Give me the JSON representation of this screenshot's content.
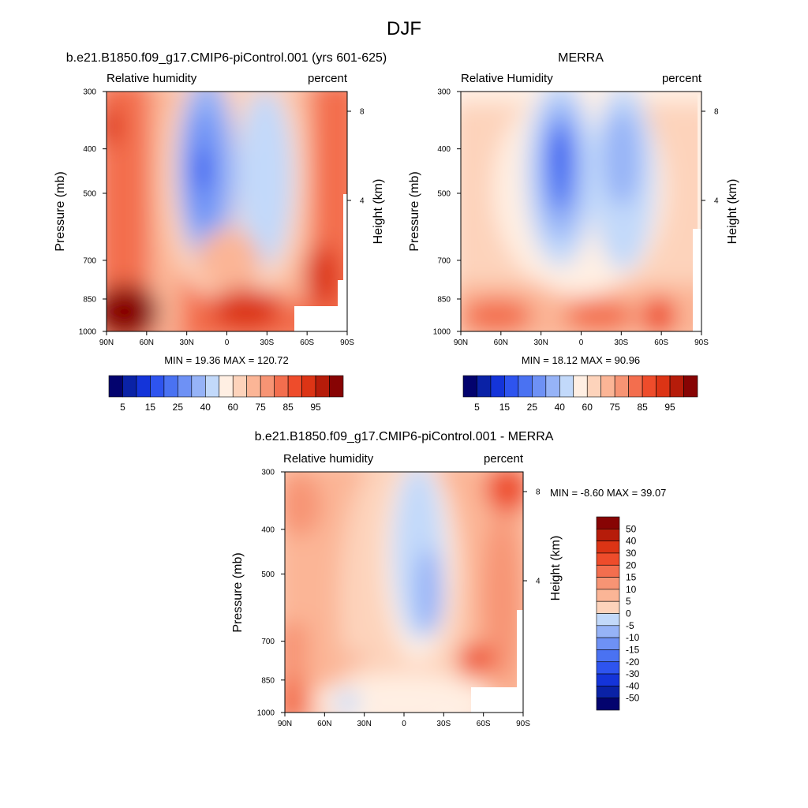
{
  "figure": {
    "title": "DJF"
  },
  "palettes": {
    "rh": [
      "#03036e",
      "#0a22a6",
      "#1434d9",
      "#2e54ef",
      "#4a72f2",
      "#6e91f5",
      "#96b3f7",
      "#c2d9fa",
      "#ffefe3",
      "#fdd3bb",
      "#fbb596",
      "#f79474",
      "#f36e4e",
      "#ee4c2b",
      "#dc3415",
      "#b61c0a",
      "#870404"
    ],
    "diff": [
      "#03036e",
      "#0a22a6",
      "#1434d9",
      "#2e54ef",
      "#4a72f2",
      "#6e91f5",
      "#96b3f7",
      "#c2d9fa",
      "#ffefe3",
      "#fdd3bb",
      "#fbb596",
      "#f79474",
      "#f36e4e",
      "#ee4c2b",
      "#dc3415",
      "#b61c0a",
      "#870404"
    ]
  },
  "chart_data": [
    {
      "type": "heatmap",
      "title": "b.e21.B1850.f09_g17.CMIP6-piControl.001 (yrs 601-625)",
      "left_string": "Relative humidity",
      "right_string": "percent",
      "ylabel": "Pressure (mb)",
      "ylabel_right": "Height (km)",
      "x_ticks": [
        "90N",
        "60N",
        "30N",
        "0",
        "30S",
        "60S",
        "90S"
      ],
      "x_range": [
        90,
        -90
      ],
      "y_ticks": [
        "300",
        "400",
        "500",
        "700",
        "850",
        "1000"
      ],
      "y_ticks_right": [
        "8",
        "4"
      ],
      "y_range": [
        300,
        1000
      ],
      "min_max": "MIN =  19.36  MAX = 120.72",
      "levels": [
        5,
        10,
        15,
        20,
        25,
        30,
        40,
        50,
        60,
        65,
        70,
        75,
        80,
        85,
        90,
        95
      ],
      "colorbar_labels": [
        "5",
        "15",
        "25",
        "40",
        "60",
        "75",
        "85",
        "95"
      ],
      "colorbar_orientation": "horizontal"
    },
    {
      "type": "heatmap",
      "title": "MERRA",
      "left_string": "Relative Humidity",
      "right_string": "percent",
      "ylabel": "Pressure (mb)",
      "ylabel_right": "Height (km)",
      "x_ticks": [
        "90N",
        "60N",
        "30N",
        "0",
        "30S",
        "60S",
        "90S"
      ],
      "x_range": [
        90,
        -90
      ],
      "y_ticks": [
        "300",
        "400",
        "500",
        "700",
        "850",
        "1000"
      ],
      "y_ticks_right": [
        "8",
        "4"
      ],
      "y_range": [
        300,
        1000
      ],
      "min_max": "MIN =  18.12  MAX =  90.96",
      "levels": [
        5,
        10,
        15,
        20,
        25,
        30,
        40,
        50,
        60,
        65,
        70,
        75,
        80,
        85,
        90,
        95
      ],
      "colorbar_labels": [
        "5",
        "15",
        "25",
        "40",
        "60",
        "75",
        "85",
        "95"
      ],
      "colorbar_orientation": "horizontal"
    },
    {
      "type": "heatmap",
      "title": "b.e21.B1850.f09_g17.CMIP6-piControl.001 - MERRA",
      "left_string": "Relative humidity",
      "right_string": "percent",
      "ylabel": "Pressure (mb)",
      "ylabel_right": "Height (km)",
      "x_ticks": [
        "90N",
        "60N",
        "30N",
        "0",
        "30S",
        "60S",
        "90S"
      ],
      "x_range": [
        90,
        -90
      ],
      "y_ticks": [
        "300",
        "400",
        "500",
        "700",
        "850",
        "1000"
      ],
      "y_ticks_right": [
        "8",
        "4"
      ],
      "y_range": [
        300,
        1000
      ],
      "min_max": "MIN =  -8.60  MAX =  39.07",
      "levels": [
        -50,
        -40,
        -30,
        -20,
        -15,
        -10,
        -5,
        0,
        5,
        10,
        15,
        20,
        30,
        40,
        50
      ],
      "colorbar_labels": [
        "50",
        "40",
        "30",
        "20",
        "15",
        "10",
        "5",
        "0",
        "-5",
        "-10",
        "-15",
        "-20",
        "-30",
        "-40",
        "-50"
      ],
      "colorbar_orientation": "vertical"
    }
  ]
}
